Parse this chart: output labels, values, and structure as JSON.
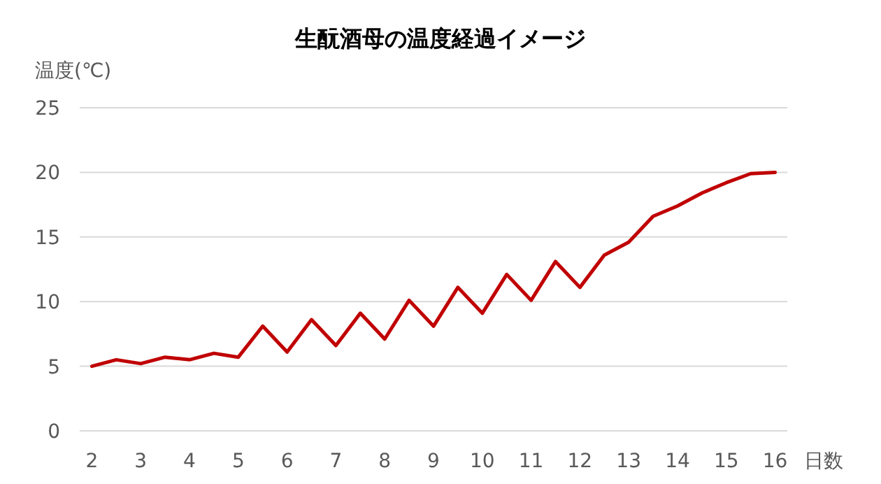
{
  "chart_data": {
    "type": "line",
    "title": "生酛酒母の温度経過イメージ",
    "ylabel": "温度(℃)",
    "xlabel": "日数",
    "categories": [
      "2",
      null,
      "3",
      null,
      "4",
      null,
      "5",
      null,
      "6",
      null,
      "7",
      null,
      "8",
      null,
      "9",
      null,
      "10",
      null,
      "11",
      null,
      "12",
      null,
      "13",
      null,
      "14",
      null,
      "15",
      null,
      "16"
    ],
    "series": [
      {
        "color": "#c00000",
        "values": [
          5.0,
          5.5,
          5.2,
          5.7,
          5.5,
          6.0,
          5.7,
          8.1,
          6.1,
          8.6,
          6.6,
          9.1,
          7.1,
          10.1,
          8.1,
          11.1,
          9.1,
          12.1,
          10.1,
          13.1,
          11.1,
          13.6,
          14.6,
          16.6,
          17.4,
          18.4,
          19.2,
          19.9,
          20.0
        ]
      }
    ],
    "ylim": [
      0,
      25
    ],
    "yticks": [
      0,
      5,
      10,
      15,
      20,
      25
    ],
    "grid": "y",
    "marker": "none",
    "line_style": "solid"
  }
}
